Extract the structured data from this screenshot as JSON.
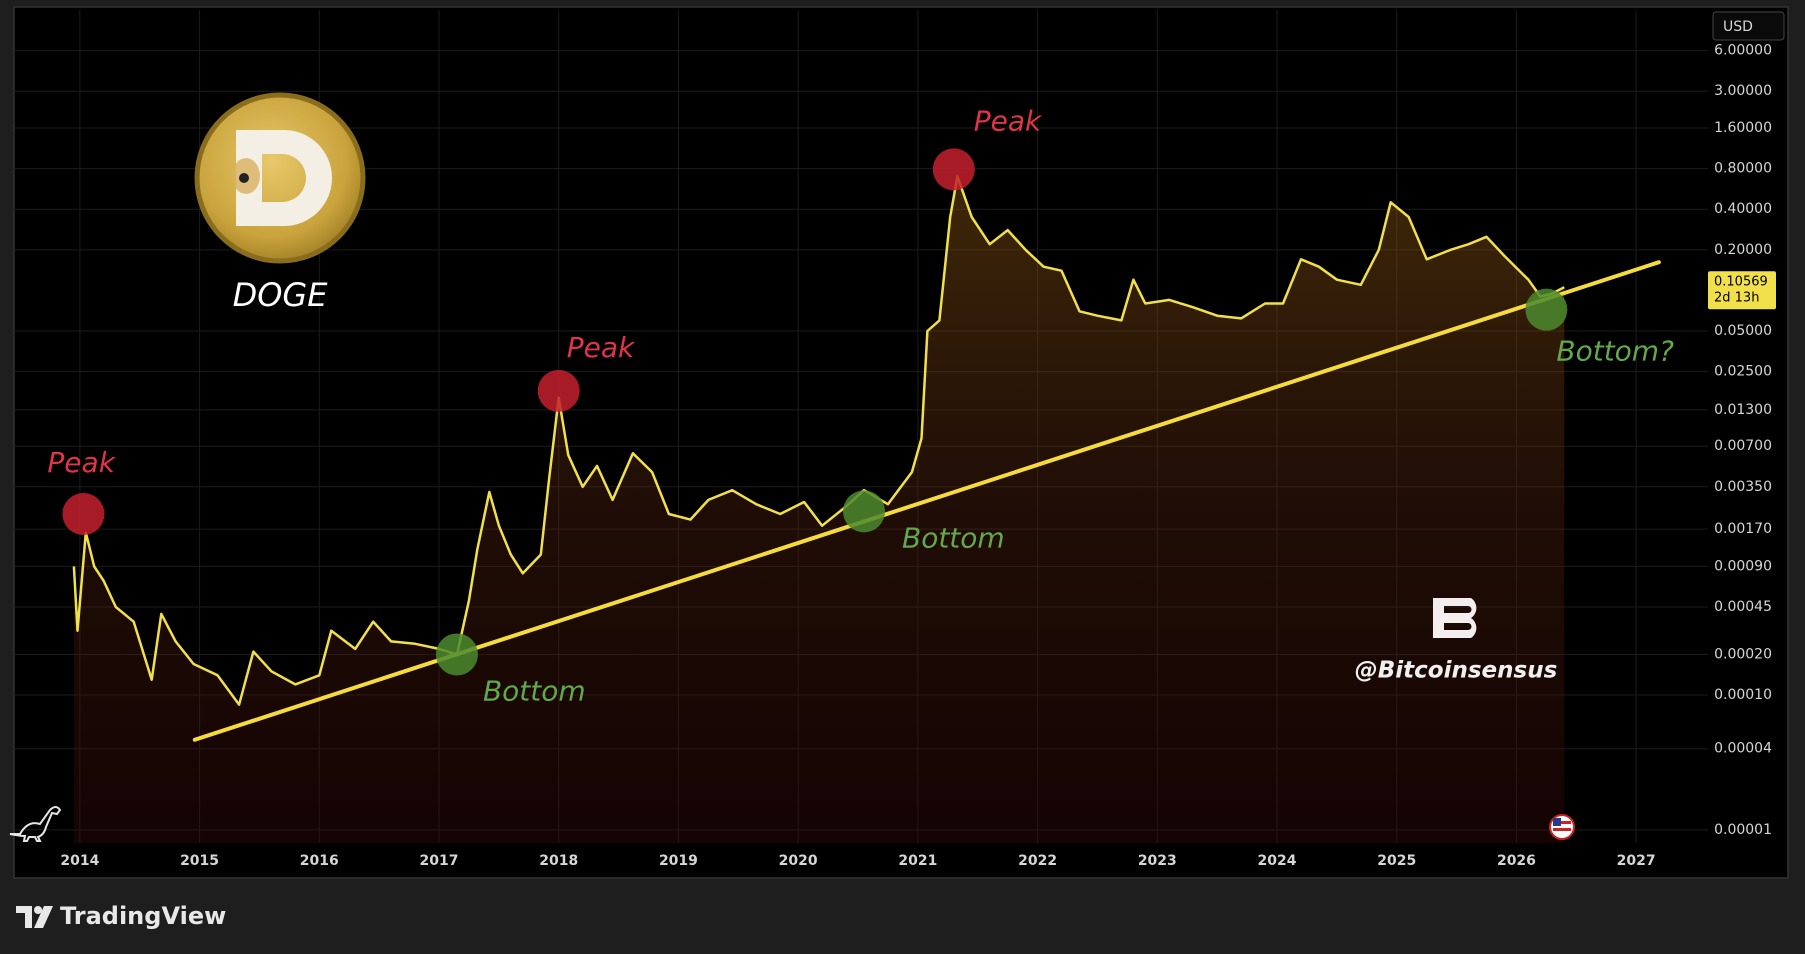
{
  "chart_data": {
    "type": "line",
    "currency": "USD",
    "brand": "TradingView",
    "watermark": "@Bitcoinsensus",
    "countdown": "2d 13h",
    "log_scale": true,
    "grid": true,
    "xlim": [
      2013.45,
      2027.6
    ],
    "xticks": [
      2014,
      2015,
      2016,
      2017,
      2018,
      2019,
      2020,
      2021,
      2022,
      2023,
      2024,
      2025,
      2026,
      2027
    ],
    "ylim": [
      8e-06,
      12
    ],
    "yticks": [
      {
        "value": 6,
        "label": "6.00000"
      },
      {
        "value": 3,
        "label": "3.00000"
      },
      {
        "value": 1.6,
        "label": "1.60000"
      },
      {
        "value": 0.8,
        "label": "0.80000"
      },
      {
        "value": 0.4,
        "label": "0.40000"
      },
      {
        "value": 0.2,
        "label": "0.20000"
      },
      {
        "value": 0.05,
        "label": "0.05000"
      },
      {
        "value": 0.025,
        "label": "0.02500"
      },
      {
        "value": 0.013,
        "label": "0.01300"
      },
      {
        "value": 0.007,
        "label": "0.00700"
      },
      {
        "value": 0.0035,
        "label": "0.00350"
      },
      {
        "value": 0.0017,
        "label": "0.00170"
      },
      {
        "value": 0.0009,
        "label": "0.00090"
      },
      {
        "value": 0.00045,
        "label": "0.00045"
      },
      {
        "value": 0.0002,
        "label": "0.00020"
      },
      {
        "value": 0.0001,
        "label": "0.00010"
      },
      {
        "value": 4e-05,
        "label": "0.00004"
      },
      {
        "value": 1e-05,
        "label": "0.00001"
      }
    ],
    "x": [
      2013.95,
      2013.98,
      2014.05,
      2014.12,
      2014.2,
      2014.3,
      2014.45,
      2014.6,
      2014.68,
      2014.8,
      2014.95,
      2015.15,
      2015.33,
      2015.45,
      2015.6,
      2015.8,
      2016.0,
      2016.1,
      2016.3,
      2016.45,
      2016.6,
      2016.8,
      2017.0,
      2017.15,
      2017.25,
      2017.32,
      2017.42,
      2017.5,
      2017.6,
      2017.7,
      2017.85,
      2017.92,
      2018.0,
      2018.08,
      2018.2,
      2018.32,
      2018.45,
      2018.62,
      2018.78,
      2018.92,
      2019.1,
      2019.25,
      2019.45,
      2019.65,
      2019.85,
      2020.05,
      2020.2,
      2020.4,
      2020.55,
      2020.75,
      2020.95,
      2021.03,
      2021.08,
      2021.18,
      2021.27,
      2021.33,
      2021.45,
      2021.6,
      2021.75,
      2021.9,
      2022.05,
      2022.2,
      2022.35,
      2022.5,
      2022.7,
      2022.8,
      2022.9,
      2023.1,
      2023.3,
      2023.5,
      2023.7,
      2023.9,
      2024.05,
      2024.2,
      2024.35,
      2024.5,
      2024.7,
      2024.85,
      2024.95,
      2025.1,
      2025.25,
      2025.45,
      2025.6,
      2025.75,
      2025.9,
      2026.1,
      2026.2,
      2026.3,
      2026.4
    ],
    "series": [
      {
        "name": "DOGE",
        "color": "#f2e04b",
        "values": [
          0.0009,
          0.0003,
          0.0016,
          0.0009,
          0.0007,
          0.00045,
          0.00035,
          0.00013,
          0.0004,
          0.00025,
          0.00017,
          0.00014,
          8.5e-05,
          0.00021,
          0.00015,
          0.00012,
          0.00014,
          0.0003,
          0.00022,
          0.00035,
          0.00025,
          0.00024,
          0.00022,
          0.0002,
          0.0005,
          0.0012,
          0.0032,
          0.0018,
          0.0011,
          0.0008,
          0.0011,
          0.004,
          0.016,
          0.006,
          0.0035,
          0.005,
          0.0028,
          0.0062,
          0.0045,
          0.0022,
          0.002,
          0.0028,
          0.0033,
          0.0026,
          0.0022,
          0.0027,
          0.0018,
          0.0025,
          0.0033,
          0.0026,
          0.0045,
          0.008,
          0.05,
          0.06,
          0.35,
          0.7,
          0.35,
          0.22,
          0.28,
          0.2,
          0.15,
          0.14,
          0.07,
          0.065,
          0.06,
          0.12,
          0.08,
          0.085,
          0.075,
          0.065,
          0.062,
          0.08,
          0.08,
          0.17,
          0.15,
          0.12,
          0.11,
          0.2,
          0.45,
          0.35,
          0.17,
          0.2,
          0.22,
          0.25,
          0.18,
          0.12,
          0.09,
          0.095,
          0.10569
        ]
      }
    ],
    "trend_line": {
      "color": "#f5dc3c",
      "x": [
        2014.96,
        2027.19
      ],
      "values": [
        4.66e-05,
        0.162
      ]
    },
    "annotations": [
      {
        "text": "Peak",
        "x": 2014.03,
        "y": 0.0022,
        "color": "#c4202e",
        "text_color": "#e03448"
      },
      {
        "text": "Peak",
        "x": 2018.0,
        "y": 0.018,
        "color": "#c4202e",
        "text_color": "#e03448"
      },
      {
        "text": "Peak",
        "x": 2021.3,
        "y": 0.79,
        "color": "#c4202e",
        "text_color": "#e03448"
      },
      {
        "text": "Bottom",
        "x": 2017.15,
        "y": 0.0002,
        "color": "#4c8a2e",
        "text_color": "#63a84a"
      },
      {
        "text": "Bottom",
        "x": 2020.55,
        "y": 0.0023,
        "color": "#4c8a2e",
        "text_color": "#63a84a"
      },
      {
        "text": "Bottom?",
        "x": 2026.25,
        "y": 0.072,
        "color": "#4c8a2e",
        "text_color": "#63a84a"
      }
    ]
  }
}
